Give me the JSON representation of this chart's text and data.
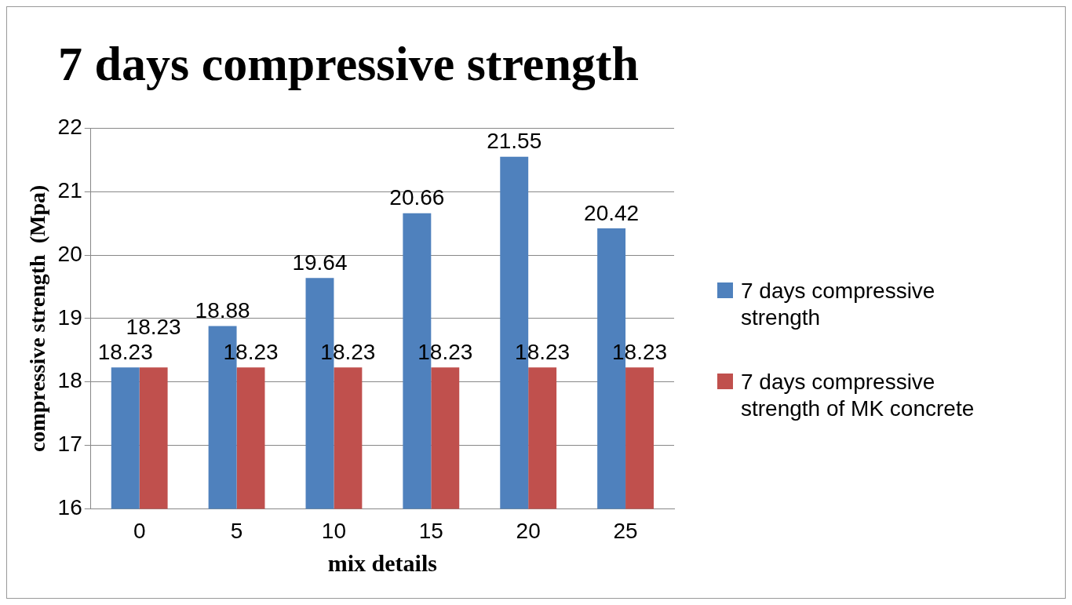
{
  "chart_data": {
    "type": "bar",
    "title": "7 days compressive strength",
    "xlabel": "mix details",
    "ylabel": "compressive strength  (Mpa)",
    "categories": [
      "0",
      "5",
      "10",
      "15",
      "20",
      "25"
    ],
    "series": [
      {
        "name": "7 days compressive strength",
        "color": "#4f81bd",
        "values": [
          18.23,
          18.88,
          19.64,
          20.66,
          21.55,
          20.42
        ]
      },
      {
        "name": "7 days compressive strength of MK concrete",
        "color": "#c0504d",
        "values": [
          18.23,
          18.23,
          18.23,
          18.23,
          18.23,
          18.23
        ]
      }
    ],
    "ylim": [
      16,
      22
    ],
    "yticks": [
      16,
      17,
      18,
      19,
      20,
      21,
      22
    ],
    "grid": "y",
    "legend": "right",
    "data_labels": true
  }
}
